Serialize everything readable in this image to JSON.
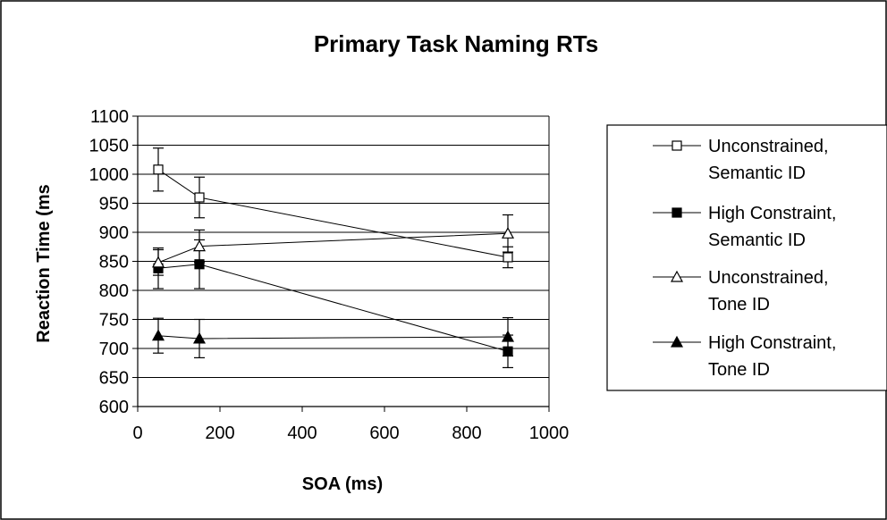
{
  "chart_data": {
    "type": "scatter",
    "title": "Primary Task Naming RTs",
    "xlabel": "SOA (ms)",
    "ylabel": "Reaction Time (ms",
    "xlim": [
      0,
      1000
    ],
    "ylim": [
      600,
      1100
    ],
    "x_ticks": [
      0,
      200,
      400,
      600,
      800,
      1000
    ],
    "y_ticks": [
      600,
      650,
      700,
      750,
      800,
      850,
      900,
      950,
      1000,
      1050,
      1100
    ],
    "grid": "horizontal",
    "legend_position": "right",
    "series": [
      {
        "name": "Unconstrained, Semantic ID",
        "legend_lines": [
          "Unconstrained,",
          "Semantic ID"
        ],
        "marker": "square-open",
        "x": [
          50,
          150,
          900
        ],
        "y": [
          1008,
          960,
          857
        ],
        "error": [
          37,
          35,
          18
        ]
      },
      {
        "name": "High Constraint, Semantic ID",
        "legend_lines": [
          "High Constraint,",
          "Semantic ID"
        ],
        "marker": "square-filled",
        "x": [
          50,
          150,
          900
        ],
        "y": [
          838,
          845,
          695
        ],
        "error": [
          35,
          42,
          28
        ]
      },
      {
        "name": "Unconstrained, Tone ID",
        "legend_lines": [
          "Unconstrained,",
          "Tone ID"
        ],
        "marker": "triangle-open",
        "x": [
          50,
          150,
          900
        ],
        "y": [
          848,
          876,
          898
        ],
        "error": [
          22,
          28,
          32
        ]
      },
      {
        "name": "High Constraint, Tone ID",
        "legend_lines": [
          "High Constraint,",
          "Tone ID"
        ],
        "marker": "triangle-filled",
        "x": [
          50,
          150,
          900
        ],
        "y": [
          722,
          717,
          720
        ],
        "error": [
          30,
          33,
          33
        ]
      }
    ]
  }
}
